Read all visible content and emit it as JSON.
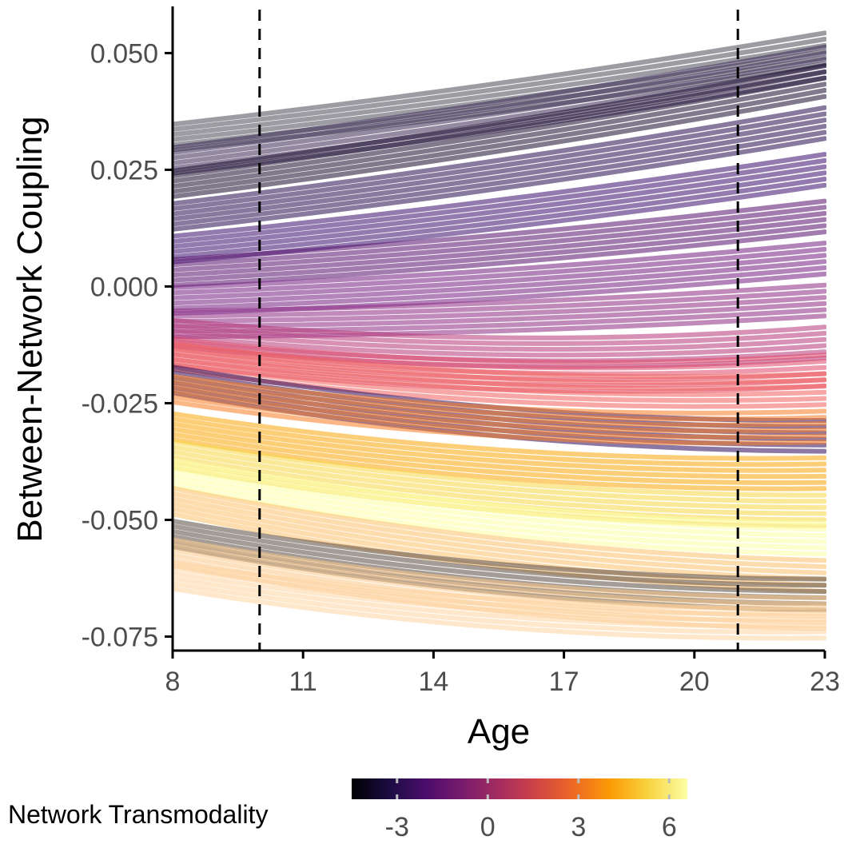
{
  "chart_data": {
    "type": "line",
    "title": "",
    "xlabel": "Age",
    "ylabel": "Between-Network Coupling",
    "xlim": [
      8,
      23
    ],
    "ylim": [
      -0.078,
      0.06
    ],
    "x_ticks": [
      8,
      11,
      14,
      17,
      20,
      23
    ],
    "x_tick_labels": [
      "8",
      "11",
      "14",
      "17",
      "20",
      "23"
    ],
    "y_ticks": [
      0.05,
      0.025,
      0.0,
      -0.025,
      -0.05,
      -0.075
    ],
    "y_tick_labels": [
      "0.050",
      "0.025",
      "0.000",
      "-0.025",
      "-0.050",
      "-0.075"
    ],
    "grid": false,
    "vlines": [
      10,
      21
    ],
    "colorbar": {
      "title": "Network Transmodality",
      "range": [
        -4.5,
        6.6
      ],
      "ticks": [
        -3,
        0,
        3,
        6
      ],
      "tick_labels": [
        "-3",
        "0",
        "3",
        "6"
      ],
      "palette": "inferno",
      "legend_position": "bottom"
    },
    "series_summary": {
      "x": [
        8,
        10,
        12,
        14,
        16,
        18,
        20,
        22,
        23
      ],
      "note_shown": "",
      "groups": [
        {
          "transmodality": -4.2,
          "color": "#4b4b55",
          "start": 0.032,
          "end": 0.051
        },
        {
          "transmodality": -4.0,
          "color": "#3a2a55",
          "start": 0.027,
          "end": 0.048
        },
        {
          "transmodality": -3.5,
          "color": "#1a0c2e",
          "start": 0.022,
          "end": 0.044
        },
        {
          "transmodality": -3.0,
          "color": "#240c4f",
          "start": 0.015,
          "end": 0.035
        },
        {
          "transmodality": -2.5,
          "color": "#3b0f70",
          "start": 0.008,
          "end": 0.025
        },
        {
          "transmodality": -2.0,
          "color": "#57106e",
          "start": 0.003,
          "end": 0.015
        },
        {
          "transmodality": -1.5,
          "color": "#721f81",
          "start": -0.003,
          "end": 0.006
        },
        {
          "transmodality": -1.0,
          "color": "#8c2981",
          "start": -0.008,
          "end": -0.003
        },
        {
          "transmodality": 0.0,
          "color": "#b73779",
          "start": -0.01,
          "end": -0.012
        },
        {
          "transmodality": 1.0,
          "color": "#de4968",
          "start": -0.014,
          "end": -0.018
        },
        {
          "transmodality": 2.0,
          "color": "#f1605d",
          "start": -0.015,
          "end": -0.022
        },
        {
          "transmodality": -2.8,
          "color": "#2e0a5a",
          "start": -0.02,
          "end": -0.032
        },
        {
          "transmodality": 3.0,
          "color": "#fa7c22",
          "start": -0.022,
          "end": -0.03
        },
        {
          "transmodality": 4.0,
          "color": "#fca50a",
          "start": -0.03,
          "end": -0.04
        },
        {
          "transmodality": 5.0,
          "color": "#f6d746",
          "start": -0.036,
          "end": -0.048
        },
        {
          "transmodality": 6.0,
          "color": "#fcffa4",
          "start": -0.04,
          "end": -0.054
        },
        {
          "transmodality": 5.5,
          "color": "#fbbf6b",
          "start": -0.046,
          "end": -0.062
        },
        {
          "transmodality": -3.8,
          "color": "#5a4a40",
          "start": -0.053,
          "end": -0.066
        },
        {
          "transmodality": 5.2,
          "color": "#fcc98a",
          "start": -0.057,
          "end": -0.07
        },
        {
          "transmodality": 5.4,
          "color": "#fdd49e",
          "start": -0.062,
          "end": -0.072
        }
      ]
    }
  }
}
